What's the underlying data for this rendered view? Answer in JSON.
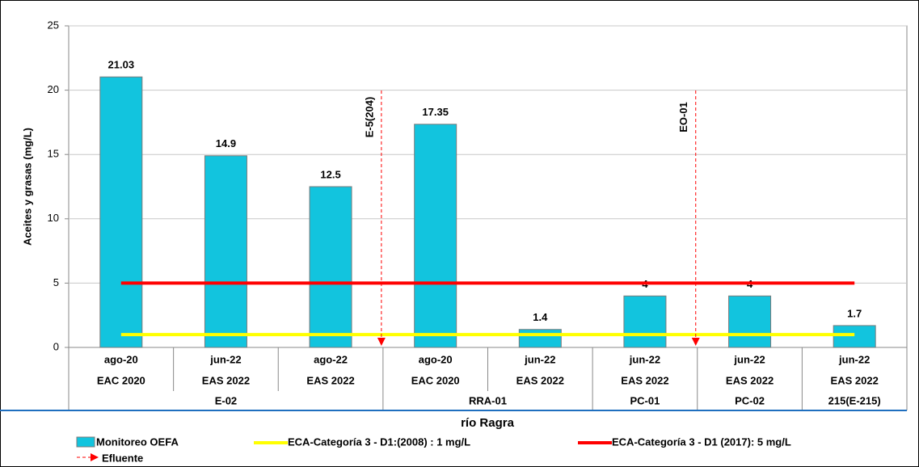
{
  "chart_data": {
    "type": "bar",
    "y_label": "Aceites y grasas (mg/L)",
    "x_label": "río Ragra",
    "categories": [
      "ago-20",
      "jun-22",
      "ago-22",
      "ago-20",
      "jun-22",
      "jun-22",
      "jun-22",
      "jun-22"
    ],
    "campaigns": [
      "EAC 2020",
      "EAS 2022",
      "EAS 2022",
      "EAC 2020",
      "EAS 2022",
      "EAS 2022",
      "EAS 2022",
      "EAS 2022"
    ],
    "group_labels": [
      "E-02",
      null,
      null,
      "RRA-01",
      null,
      "PC-01",
      "PC-02",
      "215(E-215)"
    ],
    "series": [
      {
        "name": "Monitoreo OEFA",
        "color": "#12c4de",
        "values": [
          21.03,
          14.9,
          12.5,
          17.35,
          1.4,
          4,
          4,
          1.7
        ]
      }
    ],
    "reference_lines": [
      {
        "name": "ECA-Categoría 3 - D1:(2008) : 1 mg/L",
        "value": 1,
        "color": "#ffff00"
      },
      {
        "name": "ECA-Categoría 3 - D1 (2017): 5 mg/L",
        "value": 5,
        "color": "#ff0000"
      }
    ],
    "effluent_legend": "Efluente",
    "effluent_color": "#ff0000",
    "effluents": [
      "E-5(204)",
      "EO-01"
    ],
    "ylim": [
      0,
      25
    ],
    "yticks": [
      0,
      5,
      10,
      15,
      20,
      25
    ],
    "grid": true
  }
}
